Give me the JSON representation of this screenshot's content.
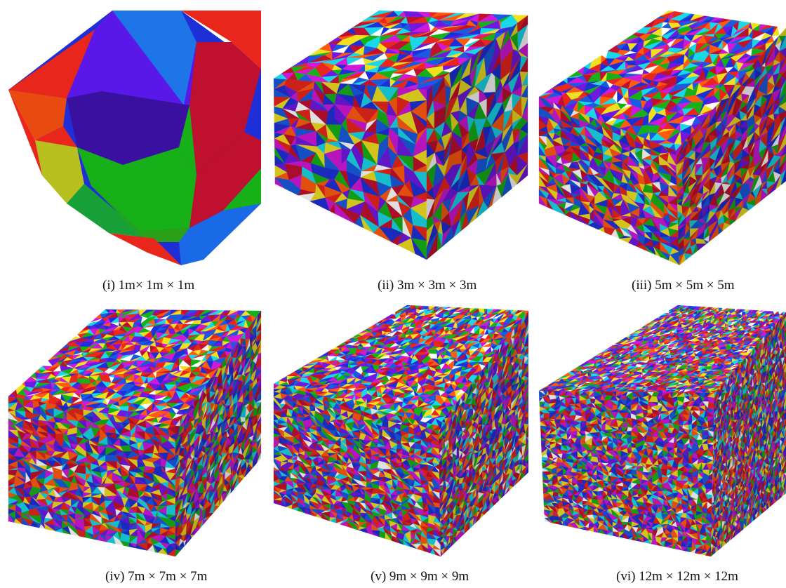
{
  "figure": {
    "panels": [
      {
        "id": "i",
        "caption": "(i) 1m× 1m × 1m",
        "grid": 1
      },
      {
        "id": "ii",
        "caption": "(ii) 3m × 3m × 3m",
        "grid": 3
      },
      {
        "id": "iii",
        "caption": "(iii) 5m × 5m × 5m",
        "grid": 5
      },
      {
        "id": "iv",
        "caption": "(iv) 7m × 7m × 7m",
        "grid": 7
      },
      {
        "id": "v",
        "caption": "(v) 9m × 9m × 9m",
        "grid": 9
      },
      {
        "id": "vi",
        "caption": "(vi) 12m × 12m × 12m",
        "grid": 12
      }
    ],
    "palette": [
      "#e8261c",
      "#1f2fd8",
      "#18b018",
      "#f0e020",
      "#d018d8",
      "#18d8e8",
      "#7018e0",
      "#c01030",
      "#ff5a10",
      "#1a5ae0",
      "#ffffff"
    ]
  }
}
